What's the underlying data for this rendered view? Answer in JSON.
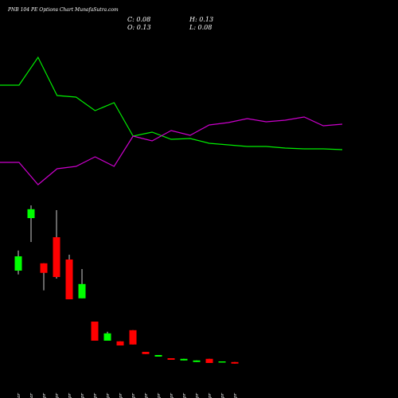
{
  "chart_data": [
    {
      "type": "candlestick",
      "title": "PNB 104 PE Options Chart MunafaSutra.com",
      "header_labels": [
        "C: 0.08",
        "H: 0.13",
        "O: 0.13",
        "L: 0.08"
      ],
      "categories": [
        "27 Mar",
        "28 Mar",
        "01 Apr",
        "02 Apr",
        "03 Apr",
        "04 Apr",
        "07 Apr",
        "08 Apr",
        "09 Apr",
        "10 Apr",
        "11 Apr",
        "15 Apr",
        "16 Apr",
        "17 Apr",
        "21 Apr",
        "22 Apr",
        "23 Apr",
        "24 Apr"
      ],
      "open": [
        3.0,
        4.65,
        3.23,
        4.05,
        3.35,
        2.13,
        1.4,
        0.8,
        0.78,
        1.13,
        0.45,
        0.3,
        0.25,
        0.18,
        0.13,
        0.23,
        0.13,
        0.13
      ],
      "high": [
        3.63,
        5.05,
        3.23,
        4.9,
        3.5,
        3.05,
        1.4,
        1.08,
        0.78,
        1.13,
        0.45,
        0.35,
        0.25,
        0.23,
        0.18,
        0.23,
        0.15,
        0.13
      ],
      "low": [
        2.88,
        3.9,
        2.38,
        2.75,
        2.1,
        2.13,
        0.8,
        0.8,
        0.65,
        0.68,
        0.38,
        0.3,
        0.2,
        0.18,
        0.13,
        0.1,
        0.13,
        0.08
      ],
      "close": [
        3.45,
        4.93,
        2.93,
        2.8,
        2.1,
        2.58,
        0.8,
        1.03,
        0.65,
        0.68,
        0.38,
        0.35,
        0.2,
        0.23,
        0.18,
        0.1,
        0.15,
        0.08
      ],
      "up_color": "#00ff00",
      "down_color": "#ff0000",
      "ylim": [
        0,
        5.5
      ]
    },
    {
      "type": "line",
      "series": [
        {
          "color": "#00ee00",
          "values": [
            71.5,
            71.5,
            89,
            65,
            64,
            55.5,
            60.5,
            39.5,
            42,
            37.5,
            38,
            35,
            34,
            33,
            33,
            32,
            31.5,
            31.5,
            31
          ]
        },
        {
          "color": "#cc00cc",
          "values": [
            23,
            23,
            9,
            19,
            20.5,
            26.5,
            20.5,
            39.5,
            36.5,
            43,
            40,
            46.5,
            48,
            50.5,
            48.5,
            49.5,
            51.5,
            46,
            47
          ]
        }
      ],
      "ylim": [
        0,
        100
      ]
    }
  ]
}
